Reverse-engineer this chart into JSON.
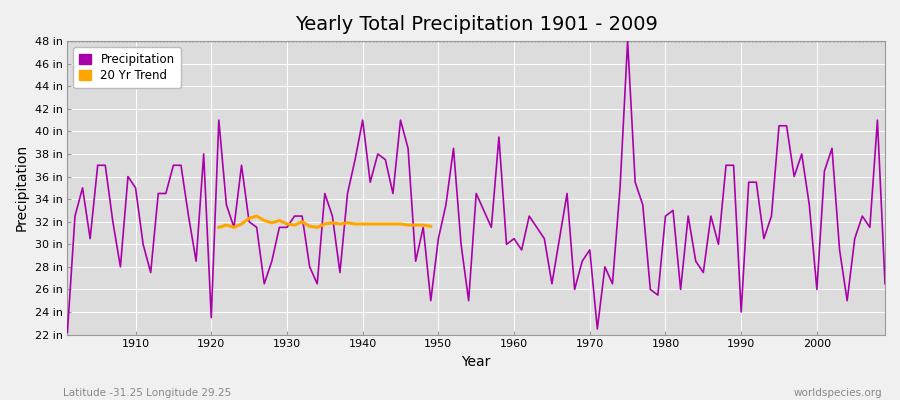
{
  "title": "Yearly Total Precipitation 1901 - 2009",
  "xlabel": "Year",
  "ylabel": "Precipitation",
  "xlim": [
    1901,
    2009
  ],
  "ylim": [
    22,
    48
  ],
  "yticks": [
    22,
    24,
    26,
    28,
    30,
    32,
    34,
    36,
    38,
    40,
    42,
    44,
    46,
    48
  ],
  "xticks": [
    1910,
    1920,
    1930,
    1940,
    1950,
    1960,
    1970,
    1980,
    1990,
    2000
  ],
  "precipitation_color": "#aa00aa",
  "trend_color": "#FFA500",
  "background_color": "#f0f0f0",
  "plot_bg_color": "#dcdcdc",
  "grid_color": "#ffffff",
  "title_fontsize": 14,
  "axis_label_fontsize": 10,
  "tick_fontsize": 8,
  "legend_labels": [
    "Precipitation",
    "20 Yr Trend"
  ],
  "footer_left": "Latitude -31.25 Longitude 29.25",
  "footer_right": "worldspecies.org",
  "years": [
    1901,
    1902,
    1903,
    1904,
    1905,
    1906,
    1907,
    1908,
    1909,
    1910,
    1911,
    1912,
    1913,
    1914,
    1915,
    1916,
    1917,
    1918,
    1919,
    1920,
    1921,
    1922,
    1923,
    1924,
    1925,
    1926,
    1927,
    1928,
    1929,
    1930,
    1931,
    1932,
    1933,
    1934,
    1935,
    1936,
    1937,
    1938,
    1939,
    1940,
    1941,
    1942,
    1943,
    1944,
    1945,
    1946,
    1947,
    1948,
    1949,
    1950,
    1951,
    1952,
    1953,
    1954,
    1955,
    1956,
    1957,
    1958,
    1959,
    1960,
    1961,
    1962,
    1963,
    1964,
    1965,
    1966,
    1967,
    1968,
    1969,
    1970,
    1971,
    1972,
    1973,
    1974,
    1975,
    1976,
    1977,
    1978,
    1979,
    1980,
    1981,
    1982,
    1983,
    1984,
    1985,
    1986,
    1987,
    1988,
    1989,
    1990,
    1991,
    1992,
    1993,
    1994,
    1995,
    1996,
    1997,
    1998,
    1999,
    2000,
    2001,
    2002,
    2003,
    2004,
    2005,
    2006,
    2007,
    2008,
    2009
  ],
  "precip": [
    22.2,
    32.5,
    35.0,
    30.5,
    37.0,
    37.0,
    32.0,
    28.0,
    36.0,
    35.0,
    30.0,
    27.5,
    34.5,
    34.5,
    37.0,
    37.0,
    32.5,
    28.5,
    38.0,
    23.5,
    41.0,
    33.5,
    31.5,
    37.0,
    32.0,
    31.5,
    26.5,
    28.5,
    31.5,
    31.5,
    32.5,
    32.5,
    28.0,
    26.5,
    34.5,
    32.5,
    27.5,
    34.5,
    37.5,
    41.0,
    35.5,
    38.0,
    37.5,
    34.5,
    41.0,
    38.5,
    28.5,
    31.5,
    25.0,
    30.5,
    33.5,
    38.5,
    30.0,
    25.0,
    34.5,
    33.0,
    31.5,
    39.5,
    30.0,
    30.5,
    29.5,
    32.5,
    31.5,
    30.5,
    26.5,
    30.5,
    34.5,
    26.0,
    28.5,
    29.5,
    22.5,
    28.0,
    26.5,
    35.0,
    48.0,
    35.5,
    33.5,
    26.0,
    25.5,
    32.5,
    33.0,
    26.0,
    32.5,
    28.5,
    27.5,
    32.5,
    30.0,
    37.0,
    37.0,
    24.0,
    35.5,
    35.5,
    30.5,
    32.5,
    40.5,
    40.5,
    36.0,
    38.0,
    33.5,
    26.0,
    36.5,
    38.5,
    29.5,
    25.0,
    30.5,
    32.5,
    31.5,
    41.0,
    26.5
  ],
  "trend_years": [
    1921,
    1922,
    1923,
    1924,
    1925,
    1926,
    1927,
    1928,
    1929,
    1930,
    1931,
    1932,
    1933,
    1934,
    1935,
    1936,
    1937,
    1938,
    1939,
    1940,
    1941,
    1942,
    1943,
    1944,
    1945,
    1946,
    1947,
    1948,
    1949
  ],
  "trend_vals": [
    31.5,
    31.7,
    31.5,
    31.8,
    32.3,
    32.5,
    32.1,
    31.9,
    32.1,
    31.8,
    31.7,
    32.0,
    31.6,
    31.5,
    31.8,
    31.9,
    31.8,
    31.9,
    31.8,
    31.8,
    31.8,
    31.8,
    31.8,
    31.8,
    31.8,
    31.7,
    31.7,
    31.7,
    31.6
  ]
}
